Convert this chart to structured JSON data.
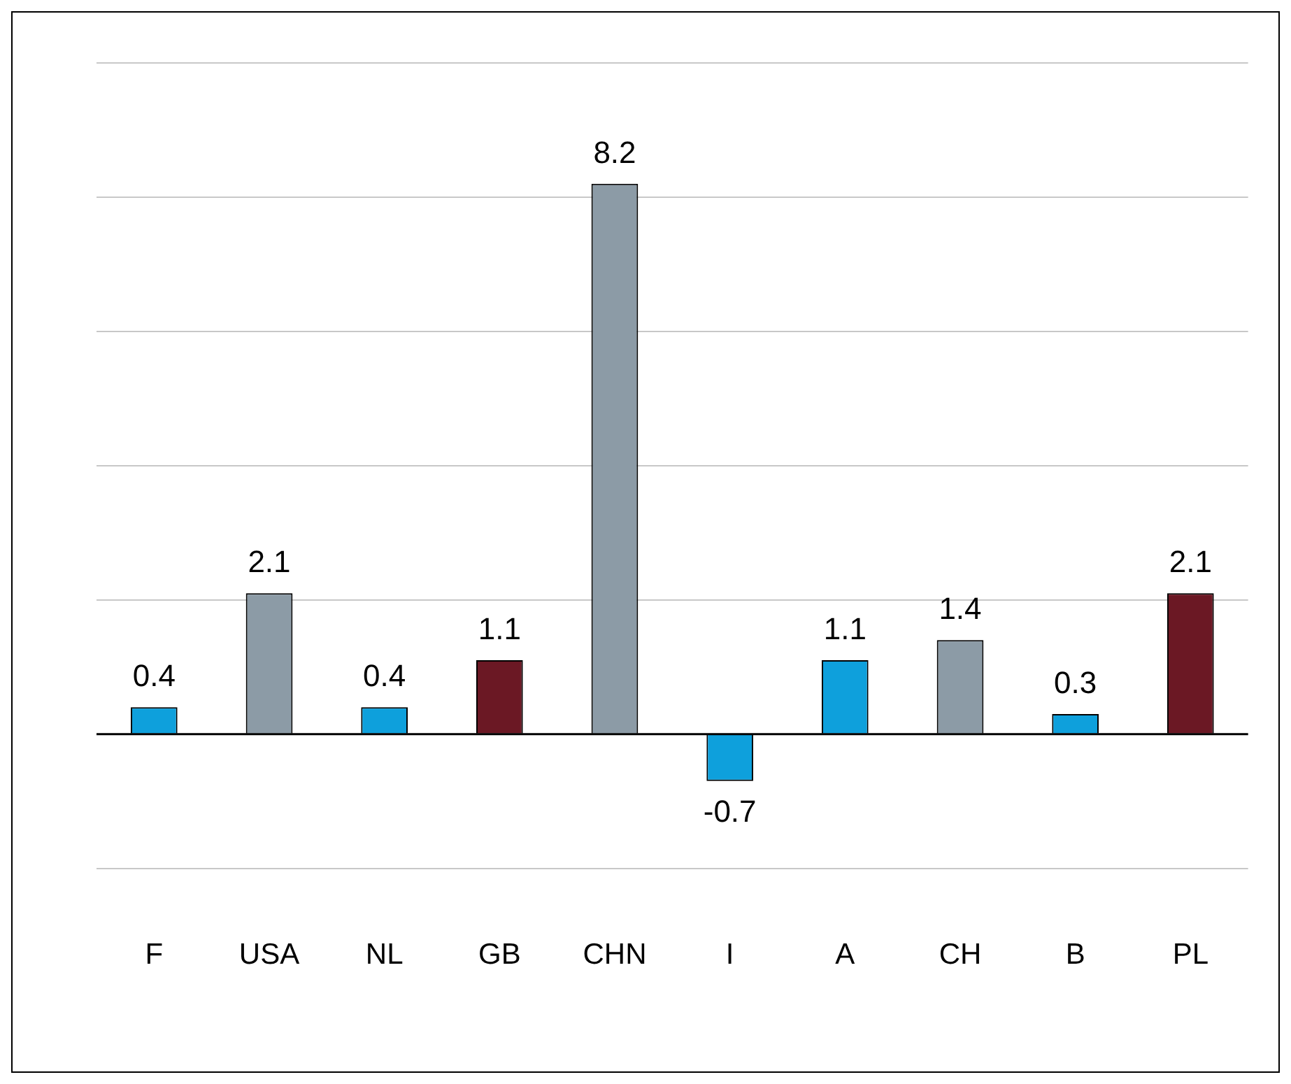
{
  "chart_data": {
    "type": "bar",
    "categories": [
      "F",
      "USA",
      "NL",
      "GB",
      "CHN",
      "I",
      "A",
      "CH",
      "B",
      "PL"
    ],
    "values": [
      0.4,
      2.1,
      0.4,
      1.1,
      8.2,
      -0.7,
      1.1,
      1.4,
      0.3,
      2.1
    ],
    "colors": [
      "#0ea0dc",
      "#8c9ba6",
      "#0ea0dc",
      "#6b1824",
      "#8c9ba6",
      "#0ea0dc",
      "#0ea0dc",
      "#8c9ba6",
      "#0ea0dc",
      "#6b1824"
    ],
    "grid": "y",
    "tick_labels": "x",
    "data_labels": true
  }
}
